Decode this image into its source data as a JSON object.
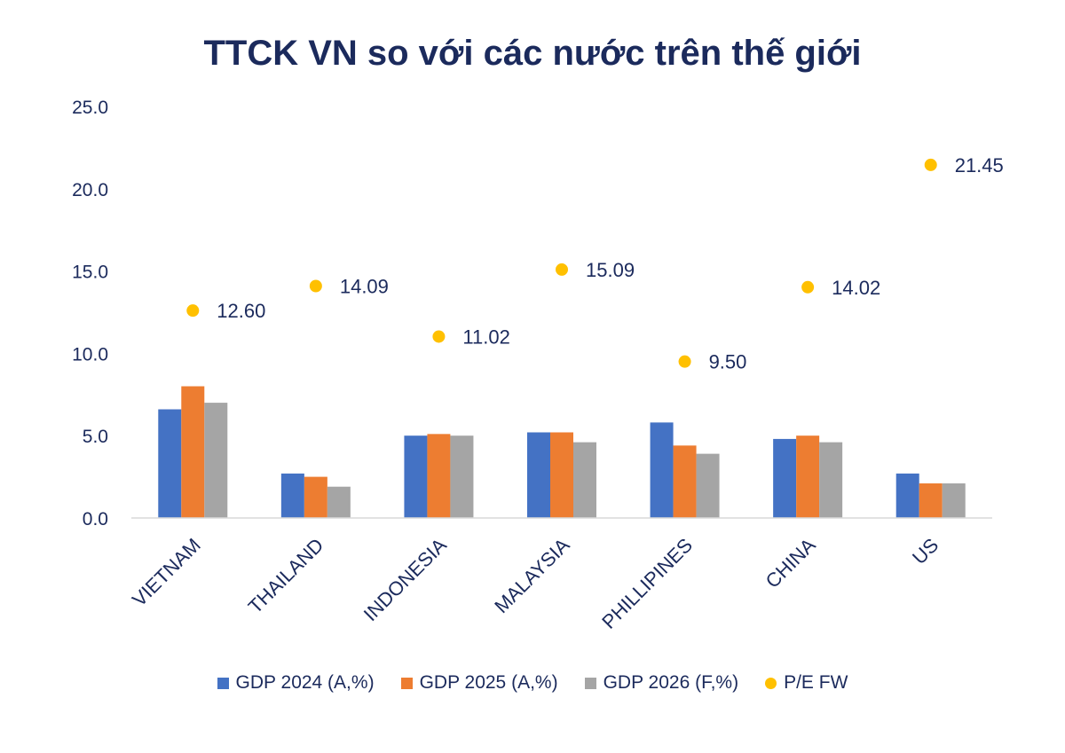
{
  "chart_data": {
    "type": "bar",
    "title": "TTCK VN so với các nước trên thế giới",
    "categories": [
      "VIETNAM",
      "THAILAND",
      "INDONESIA",
      "MALAYSIA",
      "PHILLIPINES",
      "CHINA",
      "US"
    ],
    "series": [
      {
        "name": "GDP 2024 (A,%)",
        "type": "bar",
        "color": "#4472c4",
        "values": [
          6.6,
          2.7,
          5.0,
          5.2,
          5.8,
          4.8,
          2.7
        ]
      },
      {
        "name": "GDP 2025 (A,%)",
        "type": "bar",
        "color": "#ed7d31",
        "values": [
          8.0,
          2.5,
          5.1,
          5.2,
          4.4,
          5.0,
          2.1
        ]
      },
      {
        "name": "GDP 2026 (F,%)",
        "type": "bar",
        "color": "#a5a5a5",
        "values": [
          7.0,
          1.9,
          5.0,
          4.6,
          3.9,
          4.6,
          2.1
        ]
      },
      {
        "name": "P/E FW",
        "type": "scatter",
        "color": "#ffc000",
        "values": [
          12.6,
          14.09,
          11.02,
          15.09,
          9.5,
          14.02,
          21.45
        ],
        "labels": [
          "12.60",
          "14.09",
          "11.02",
          "15.09",
          "9.50",
          "14.02",
          "21.45"
        ]
      }
    ],
    "ylim": [
      0,
      25
    ],
    "yticks": [
      "0.0",
      "5.0",
      "10.0",
      "15.0",
      "20.0",
      "25.0"
    ],
    "ytick_values": [
      0,
      5,
      10,
      15,
      20,
      25
    ],
    "grid": false,
    "legend": "bottom"
  }
}
